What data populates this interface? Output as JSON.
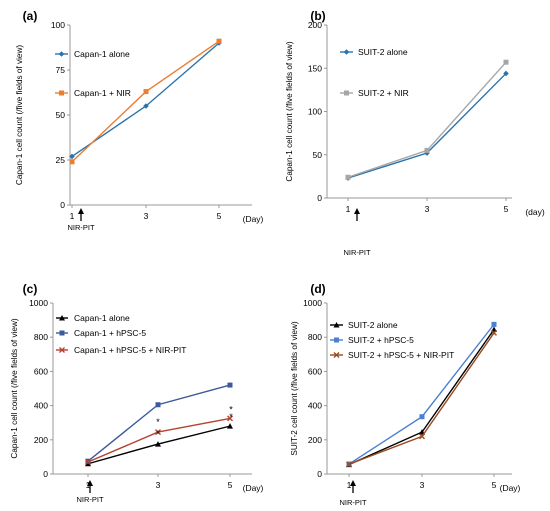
{
  "annotation": "NIR-PIT",
  "colors": {
    "blue": "#2a74ad",
    "orange": "#ec7d31",
    "gray": "#a6a6a6",
    "black": "#000000",
    "navy": "#3d5a9a",
    "red": "#b5432f",
    "lightblue": "#4b7fd0",
    "brown": "#9a4b20"
  },
  "chart_data": [
    {
      "panel": "(a)",
      "type": "line",
      "title": "",
      "xlabel": "(Day)",
      "ylabel": "Capan-1 cell count (/five fields of view)",
      "x": [
        1,
        3,
        5
      ],
      "x_ticks": [
        "1",
        "3",
        "5"
      ],
      "ylim": [
        0,
        100
      ],
      "y_ticks": [
        "0",
        "25",
        "50",
        "75",
        "100"
      ],
      "legend_position": "top-left",
      "series": [
        {
          "name": "Capan-1 alone",
          "values": [
            27,
            55,
            90
          ],
          "color": "#2a74ad",
          "marker": "diamond"
        },
        {
          "name": "Capan-1 + NIR",
          "values": [
            24,
            63,
            91
          ],
          "color": "#ec7d31",
          "marker": "square"
        }
      ]
    },
    {
      "panel": "(b)",
      "type": "line",
      "title": "",
      "xlabel": "(day)",
      "ylabel": "Capan-1 cell count (/five fields of view)",
      "x": [
        1,
        3,
        5
      ],
      "x_ticks": [
        "1",
        "3",
        "5"
      ],
      "ylim": [
        0,
        200
      ],
      "y_ticks": [
        "0",
        "50",
        "100",
        "150",
        "200"
      ],
      "legend_position": "top-left",
      "series": [
        {
          "name": "SUIT-2 alone",
          "values": [
            23,
            52,
            144
          ],
          "color": "#2a74ad",
          "marker": "diamond"
        },
        {
          "name": "SUIT-2 + NIR",
          "values": [
            24,
            55,
            157
          ],
          "color": "#a6a6a6",
          "marker": "square"
        }
      ]
    },
    {
      "panel": "(c)",
      "type": "line",
      "title": "",
      "xlabel": "(Day)",
      "ylabel": "Capan-1 cell count (/five fields of view)",
      "x": [
        1,
        3,
        5
      ],
      "x_ticks": [
        "1",
        "3",
        "5"
      ],
      "ylim": [
        0,
        1000
      ],
      "y_ticks": [
        "0",
        "200",
        "400",
        "600",
        "800",
        "1000"
      ],
      "legend_position": "top-left",
      "series": [
        {
          "name": "Capan-1 alone",
          "values": [
            60,
            175,
            280
          ],
          "color": "#000000",
          "marker": "triangle"
        },
        {
          "name": "Capan-1 + hPSC-5",
          "values": [
            75,
            405,
            520
          ],
          "color": "#3d5a9a",
          "marker": "square"
        },
        {
          "name": "Capan-1 + hPSC-5 + NIR-PIT",
          "values": [
            70,
            245,
            325
          ],
          "color": "#b5432f",
          "marker": "x"
        }
      ],
      "annotations": [
        "*",
        "*",
        "*",
        "*"
      ]
    },
    {
      "panel": "(d)",
      "type": "line",
      "title": "",
      "xlabel": "(Day)",
      "ylabel": "SUIT-2 cell count (/five fields of view)",
      "x": [
        1,
        3,
        5
      ],
      "x_ticks": [
        "1",
        "3",
        "5"
      ],
      "ylim": [
        0,
        1000
      ],
      "y_ticks": [
        "0",
        "200",
        "400",
        "600",
        "800",
        "1000"
      ],
      "legend_position": "top-left",
      "series": [
        {
          "name": "SUIT-2 alone",
          "values": [
            55,
            245,
            845
          ],
          "color": "#000000",
          "marker": "triangle"
        },
        {
          "name": "SUIT-2 + hPSC-5",
          "values": [
            58,
            335,
            875
          ],
          "color": "#4b7fd0",
          "marker": "square"
        },
        {
          "name": "SUIT-2 + hPSC-5 + NIR-PIT",
          "values": [
            57,
            220,
            825
          ],
          "color": "#9a4b20",
          "marker": "x"
        }
      ]
    }
  ]
}
